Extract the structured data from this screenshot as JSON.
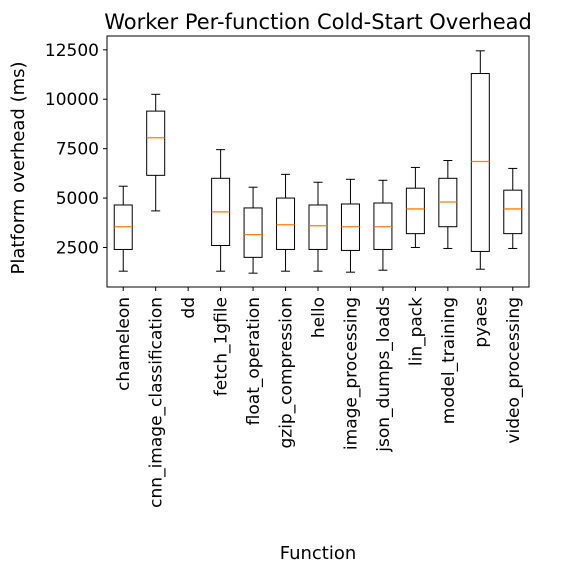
{
  "chart_data": {
    "type": "box",
    "title": "Worker Per-function Cold-Start Overhead",
    "xlabel": "Function",
    "ylabel": "Platform overhead (ms)",
    "ylim": [
      500,
      13200
    ],
    "yticks": [
      2500,
      5000,
      7500,
      10000,
      12500
    ],
    "ytick_labels": [
      "2500",
      "5000",
      "7500",
      "10000",
      "12500"
    ],
    "grid": false,
    "colors": {
      "box": "#000000",
      "median": "#ff7f0e"
    },
    "categories": [
      "chameleon",
      "cnn_image_classification",
      "dd",
      "fetch_1gfile",
      "float_operation",
      "gzip_compression",
      "hello",
      "image_processing",
      "json_dumps_loads",
      "lin_pack",
      "model_training",
      "pyaes",
      "video_processing"
    ],
    "boxes": [
      {
        "whisker_low": 1300,
        "q1": 2400,
        "median": 3550,
        "q3": 4650,
        "whisker_high": 5600
      },
      {
        "whisker_low": 4350,
        "q1": 6150,
        "median": 8050,
        "q3": 9400,
        "whisker_high": 10250
      },
      null,
      {
        "whisker_low": 1300,
        "q1": 2600,
        "median": 4300,
        "q3": 6000,
        "whisker_high": 7450
      },
      {
        "whisker_low": 1200,
        "q1": 2000,
        "median": 3150,
        "q3": 4500,
        "whisker_high": 5550
      },
      {
        "whisker_low": 1300,
        "q1": 2400,
        "median": 3650,
        "q3": 5000,
        "whisker_high": 6200
      },
      {
        "whisker_low": 1300,
        "q1": 2400,
        "median": 3600,
        "q3": 4650,
        "whisker_high": 5800
      },
      {
        "whisker_low": 1250,
        "q1": 2350,
        "median": 3550,
        "q3": 4700,
        "whisker_high": 5950
      },
      {
        "whisker_low": 1350,
        "q1": 2400,
        "median": 3550,
        "q3": 4750,
        "whisker_high": 5900
      },
      {
        "whisker_low": 2500,
        "q1": 3200,
        "median": 4450,
        "q3": 5500,
        "whisker_high": 6550
      },
      {
        "whisker_low": 2450,
        "q1": 3550,
        "median": 4800,
        "q3": 6000,
        "whisker_high": 6900
      },
      {
        "whisker_low": 1400,
        "q1": 2300,
        "median": 6850,
        "q3": 11300,
        "whisker_high": 12450
      },
      {
        "whisker_low": 2450,
        "q1": 3200,
        "median": 4450,
        "q3": 5400,
        "whisker_high": 6500
      }
    ]
  }
}
